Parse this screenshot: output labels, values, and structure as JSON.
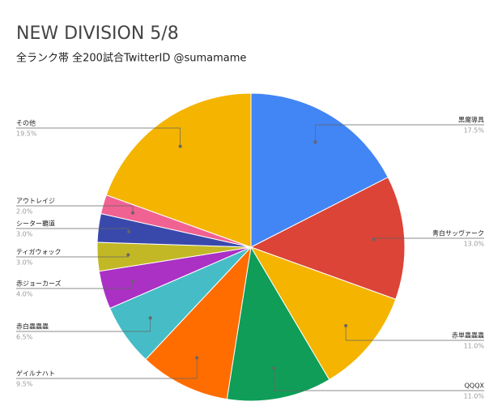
{
  "chart_data": {
    "type": "pie",
    "title": "NEW DIVISION 5/8",
    "subtitle": "全ランク帯 全200試合TwitterID @sumamame",
    "categories": [
      "黒魔導具",
      "青白サッヴァーク",
      "赤単蟲蟲蟲",
      "QQQX",
      "ゲイルナハト",
      "赤白蟲蟲蟲",
      "赤ジョーカーズ",
      "ティガウォック",
      "シーター覇道",
      "アウトレイジ",
      "その他"
    ],
    "values": [
      17.5,
      13.0,
      11.0,
      11.0,
      9.5,
      6.5,
      4.0,
      3.0,
      3.0,
      2.0,
      19.5
    ],
    "value_labels": [
      "17.5%",
      "13.0%",
      "11.0%",
      "11.0%",
      "9.5%",
      "6.5%",
      "4.0%",
      "3.0%",
      "3.0%",
      "2.0%",
      "19.5%"
    ],
    "colors": [
      "#4285f4",
      "#db4437",
      "#f4b400",
      "#0f9d58",
      "#ff6d00",
      "#46bdc6",
      "#ab30c4",
      "#c2b825",
      "#3949ab",
      "#f06292",
      "#f4b400"
    ]
  }
}
